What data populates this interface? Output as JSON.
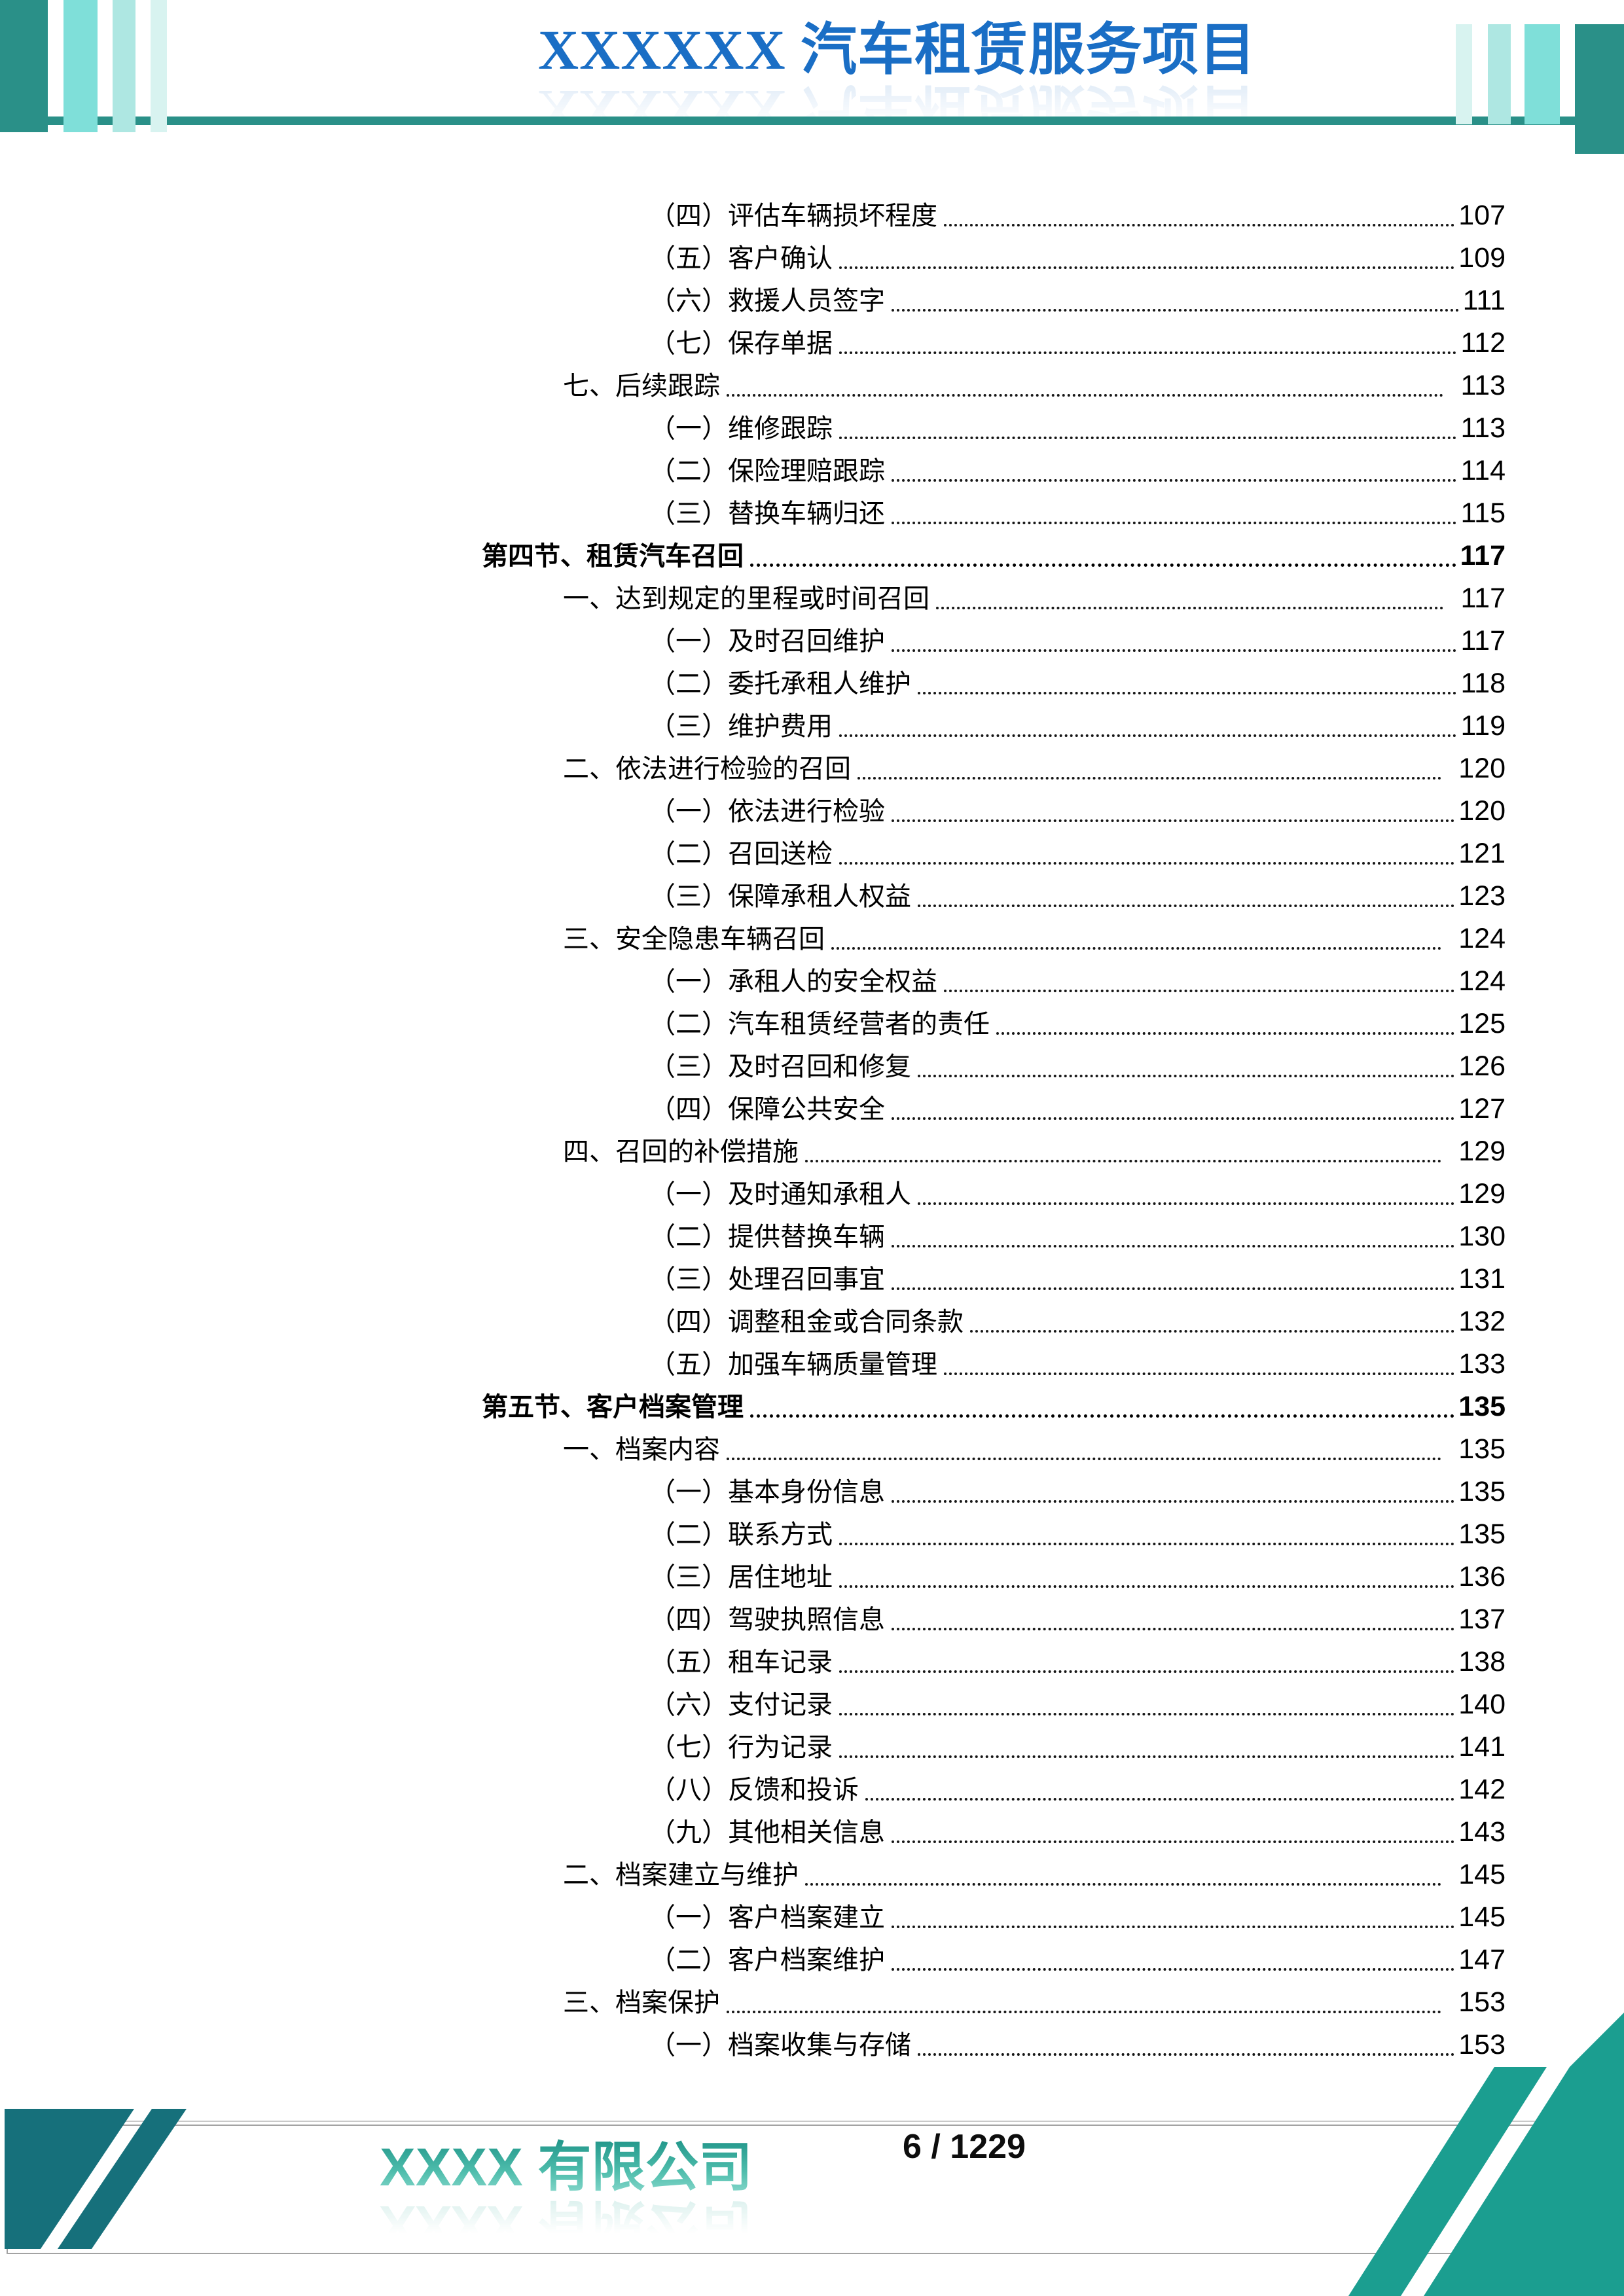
{
  "header": {
    "title": "XXXXXX 汽车租赁服务项目"
  },
  "toc": {
    "entries": [
      {
        "level": 2,
        "text": "（四）评估车辆损坏程度",
        "page": "107",
        "bold": false
      },
      {
        "level": 2,
        "text": "（五）客户确认",
        "page": "109",
        "bold": false
      },
      {
        "level": 2,
        "text": "（六）救援人员签字",
        "page": "111",
        "bold": false
      },
      {
        "level": 2,
        "text": "（七）保存单据",
        "page": "112",
        "bold": false
      },
      {
        "level": 1,
        "text": "七、后续跟踪",
        "page": "113",
        "bold": false
      },
      {
        "level": 2,
        "text": "（一）维修跟踪",
        "page": "113",
        "bold": false
      },
      {
        "level": 2,
        "text": "（二）保险理赔跟踪",
        "page": "114",
        "bold": false
      },
      {
        "level": 2,
        "text": "（三）替换车辆归还",
        "page": "115",
        "bold": false
      },
      {
        "level": 0,
        "text": "第四节、租赁汽车召回",
        "page": "117",
        "bold": true
      },
      {
        "level": 1,
        "text": "一、达到规定的里程或时间召回",
        "page": "117",
        "bold": false
      },
      {
        "level": 2,
        "text": "（一）及时召回维护",
        "page": "117",
        "bold": false
      },
      {
        "level": 2,
        "text": "（二）委托承租人维护",
        "page": "118",
        "bold": false
      },
      {
        "level": 2,
        "text": "（三）维护费用",
        "page": "119",
        "bold": false
      },
      {
        "level": 1,
        "text": "二、依法进行检验的召回",
        "page": "120",
        "bold": false
      },
      {
        "level": 2,
        "text": "（一）依法进行检验",
        "page": "120",
        "bold": false
      },
      {
        "level": 2,
        "text": "（二）召回送检",
        "page": "121",
        "bold": false
      },
      {
        "level": 2,
        "text": "（三）保障承租人权益",
        "page": "123",
        "bold": false
      },
      {
        "level": 1,
        "text": "三、安全隐患车辆召回",
        "page": "124",
        "bold": false
      },
      {
        "level": 2,
        "text": "（一）承租人的安全权益",
        "page": "124",
        "bold": false
      },
      {
        "level": 2,
        "text": "（二）汽车租赁经营者的责任",
        "page": "125",
        "bold": false
      },
      {
        "level": 2,
        "text": "（三）及时召回和修复",
        "page": "126",
        "bold": false
      },
      {
        "level": 2,
        "text": "（四）保障公共安全",
        "page": "127",
        "bold": false
      },
      {
        "level": 1,
        "text": "四、召回的补偿措施",
        "page": "129",
        "bold": false
      },
      {
        "level": 2,
        "text": "（一）及时通知承租人",
        "page": "129",
        "bold": false
      },
      {
        "level": 2,
        "text": "（二）提供替换车辆",
        "page": "130",
        "bold": false
      },
      {
        "level": 2,
        "text": "（三）处理召回事宜",
        "page": "131",
        "bold": false
      },
      {
        "level": 2,
        "text": "（四）调整租金或合同条款",
        "page": "132",
        "bold": false
      },
      {
        "level": 2,
        "text": "（五）加强车辆质量管理",
        "page": "133",
        "bold": false
      },
      {
        "level": 0,
        "text": "第五节、客户档案管理",
        "page": "135",
        "bold": true
      },
      {
        "level": 1,
        "text": "一、档案内容",
        "page": "135",
        "bold": false
      },
      {
        "level": 2,
        "text": "（一）基本身份信息",
        "page": "135",
        "bold": false
      },
      {
        "level": 2,
        "text": "（二）联系方式",
        "page": "135",
        "bold": false
      },
      {
        "level": 2,
        "text": "（三）居住地址",
        "page": "136",
        "bold": false
      },
      {
        "level": 2,
        "text": "（四）驾驶执照信息",
        "page": "137",
        "bold": false
      },
      {
        "level": 2,
        "text": "（五）租车记录",
        "page": "138",
        "bold": false
      },
      {
        "level": 2,
        "text": "（六）支付记录",
        "page": "140",
        "bold": false
      },
      {
        "level": 2,
        "text": "（七）行为记录",
        "page": "141",
        "bold": false
      },
      {
        "level": 2,
        "text": "（八）反馈和投诉",
        "page": "142",
        "bold": false
      },
      {
        "level": 2,
        "text": "（九）其他相关信息",
        "page": "143",
        "bold": false
      },
      {
        "level": 1,
        "text": "二、档案建立与维护",
        "page": "145",
        "bold": false
      },
      {
        "level": 2,
        "text": "（一）客户档案建立",
        "page": "145",
        "bold": false
      },
      {
        "level": 2,
        "text": "（二）客户档案维护",
        "page": "147",
        "bold": false
      },
      {
        "level": 1,
        "text": "三、档案保护",
        "page": "153",
        "bold": false
      },
      {
        "level": 2,
        "text": "（一）档案收集与存储",
        "page": "153",
        "bold": false
      }
    ]
  },
  "footer": {
    "company_name": "XXXX 有限公司",
    "page_indicator": "6 / 1229"
  },
  "colors": {
    "accent_dark_teal": "#2a9088",
    "accent_medium_teal": "#7fdfd9",
    "accent_light_teal": "#aee7e2",
    "accent_pale_teal": "#d8f3f0",
    "title_blue": "#1a6ec5",
    "corner_left_teal": "#16707b",
    "corner_right_teal": "#1b9e90",
    "company_teal": "#2aa294"
  }
}
